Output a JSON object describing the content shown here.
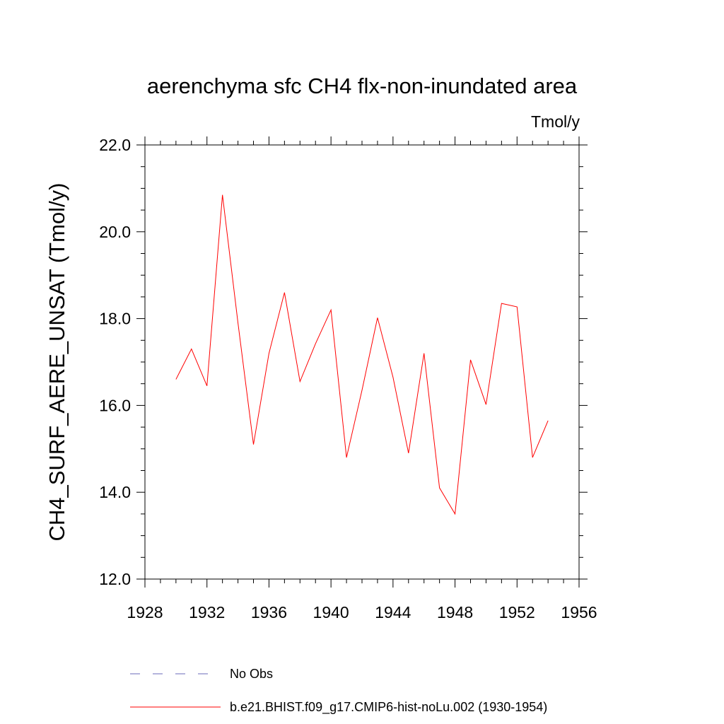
{
  "chart_data": {
    "type": "line",
    "title": "aerenchyma sfc CH4 flx-non-inundated area",
    "units_label": "Tmol/y",
    "ylabel": "CH4_SURF_AERE_UNSAT  (Tmol/y)",
    "xlabel": "",
    "xlim": [
      1928,
      1956
    ],
    "ylim": [
      12.0,
      22.0
    ],
    "x_ticks": [
      "1928",
      "1932",
      "1936",
      "1940",
      "1944",
      "1948",
      "1952",
      "1956"
    ],
    "y_ticks": [
      "12.0",
      "14.0",
      "16.0",
      "18.0",
      "20.0",
      "22.0"
    ],
    "grid": false,
    "legend_placement": "bottom",
    "x": [
      1930,
      1931,
      1932,
      1933,
      1934,
      1935,
      1936,
      1937,
      1938,
      1939,
      1940,
      1941,
      1942,
      1943,
      1944,
      1945,
      1946,
      1947,
      1948,
      1949,
      1950,
      1951,
      1952,
      1953,
      1954
    ],
    "series": [
      {
        "name": "b.e21.BHIST.f09_g17.CMIP6-hist-noLu.002 (1930-1954)",
        "color": "#ff0000",
        "style": "solid",
        "values": [
          16.6,
          17.3,
          16.45,
          20.85,
          17.9,
          15.1,
          17.2,
          18.6,
          16.55,
          17.42,
          18.2,
          14.8,
          16.35,
          18.02,
          16.65,
          14.9,
          17.2,
          14.1,
          13.5,
          17.05,
          16.02,
          18.35,
          18.27,
          14.8,
          15.65
        ]
      }
    ],
    "legend": [
      {
        "label": "No Obs",
        "color": "#6a6ab8",
        "style": "dashed"
      },
      {
        "label": "b.e21.BHIST.f09_g17.CMIP6-hist-noLu.002 (1930-1954)",
        "color": "#ff0000",
        "style": "solid"
      }
    ]
  }
}
